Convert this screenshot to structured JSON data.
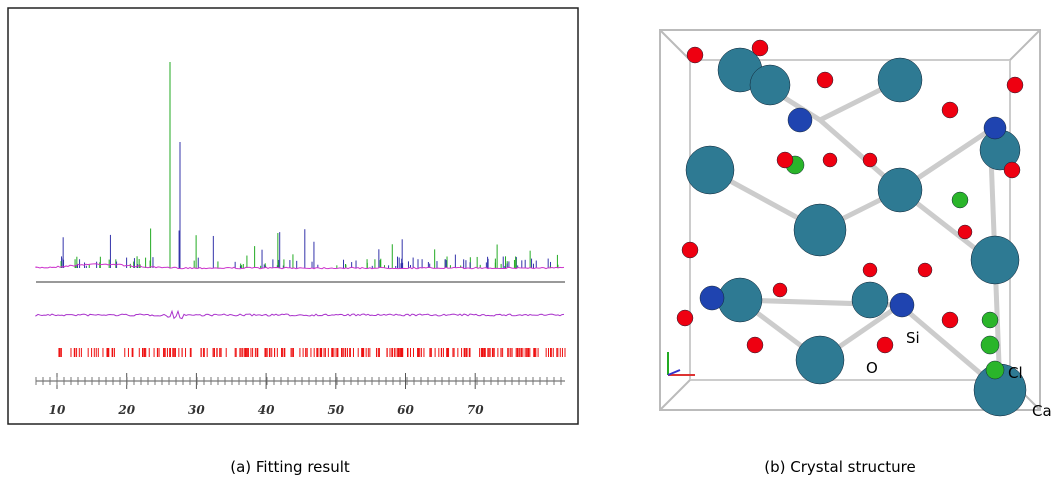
{
  "panel_a": {
    "caption": "(a) Fitting result",
    "xticks": [
      10,
      20,
      30,
      40,
      50,
      60,
      70
    ]
  },
  "panel_b": {
    "caption": "(b) Crystal structure",
    "atom_labels": [
      "Cl",
      "Si",
      "O",
      "Ca"
    ]
  }
}
